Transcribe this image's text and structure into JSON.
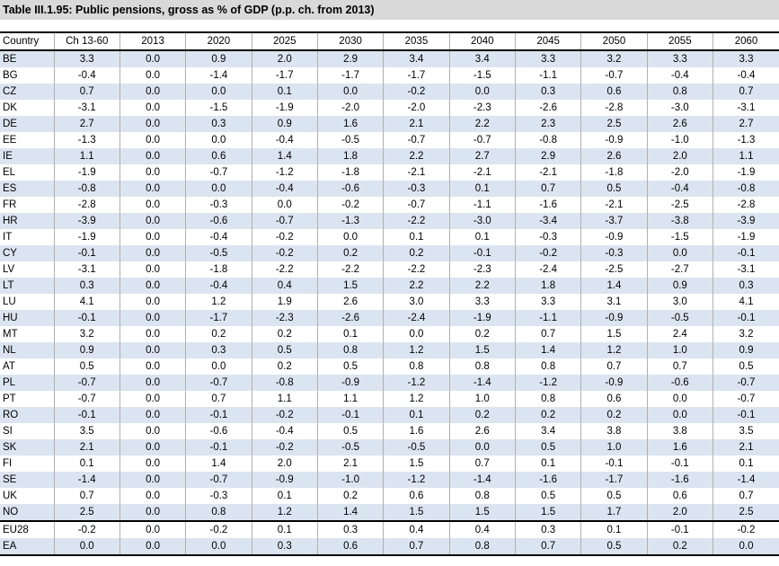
{
  "title": "Table III.1.95: Public pensions, gross as % of GDP (p.p. ch. from 2013)",
  "columns": [
    "Country",
    "Ch 13-60",
    "2013",
    "2020",
    "2025",
    "2030",
    "2035",
    "2040",
    "2045",
    "2050",
    "2055",
    "2060"
  ],
  "rows": [
    [
      "BE",
      "3.3",
      "0.0",
      "0.9",
      "2.0",
      "2.9",
      "3.4",
      "3.4",
      "3.3",
      "3.2",
      "3.3",
      "3.3"
    ],
    [
      "BG",
      "-0.4",
      "0.0",
      "-1.4",
      "-1.7",
      "-1.7",
      "-1.7",
      "-1.5",
      "-1.1",
      "-0.7",
      "-0.4",
      "-0.4"
    ],
    [
      "CZ",
      "0.7",
      "0.0",
      "0.0",
      "0.1",
      "0.0",
      "-0.2",
      "0.0",
      "0.3",
      "0.6",
      "0.8",
      "0.7"
    ],
    [
      "DK",
      "-3.1",
      "0.0",
      "-1.5",
      "-1.9",
      "-2.0",
      "-2.0",
      "-2.3",
      "-2.6",
      "-2.8",
      "-3.0",
      "-3.1"
    ],
    [
      "DE",
      "2.7",
      "0.0",
      "0.3",
      "0.9",
      "1.6",
      "2.1",
      "2.2",
      "2.3",
      "2.5",
      "2.6",
      "2.7"
    ],
    [
      "EE",
      "-1.3",
      "0.0",
      "0.0",
      "-0.4",
      "-0.5",
      "-0.7",
      "-0.7",
      "-0.8",
      "-0.9",
      "-1.0",
      "-1.3"
    ],
    [
      "IE",
      "1.1",
      "0.0",
      "0.6",
      "1.4",
      "1.8",
      "2.2",
      "2.7",
      "2.9",
      "2.6",
      "2.0",
      "1.1"
    ],
    [
      "EL",
      "-1.9",
      "0.0",
      "-0.7",
      "-1.2",
      "-1.8",
      "-2.1",
      "-2.1",
      "-2.1",
      "-1.8",
      "-2.0",
      "-1.9"
    ],
    [
      "ES",
      "-0.8",
      "0.0",
      "0.0",
      "-0.4",
      "-0.6",
      "-0.3",
      "0.1",
      "0.7",
      "0.5",
      "-0.4",
      "-0.8"
    ],
    [
      "FR",
      "-2.8",
      "0.0",
      "-0.3",
      "0.0",
      "-0.2",
      "-0.7",
      "-1.1",
      "-1.6",
      "-2.1",
      "-2.5",
      "-2.8"
    ],
    [
      "HR",
      "-3.9",
      "0.0",
      "-0.6",
      "-0.7",
      "-1.3",
      "-2.2",
      "-3.0",
      "-3.4",
      "-3.7",
      "-3.8",
      "-3.9"
    ],
    [
      "IT",
      "-1.9",
      "0.0",
      "-0.4",
      "-0.2",
      "0.0",
      "0.1",
      "0.1",
      "-0.3",
      "-0.9",
      "-1.5",
      "-1.9"
    ],
    [
      "CY",
      "-0.1",
      "0.0",
      "-0.5",
      "-0.2",
      "0.2",
      "0.2",
      "-0.1",
      "-0.2",
      "-0.3",
      "0.0",
      "-0.1"
    ],
    [
      "LV",
      "-3.1",
      "0.0",
      "-1.8",
      "-2.2",
      "-2.2",
      "-2.2",
      "-2.3",
      "-2.4",
      "-2.5",
      "-2.7",
      "-3.1"
    ],
    [
      "LT",
      "0.3",
      "0.0",
      "-0.4",
      "0.4",
      "1.5",
      "2.2",
      "2.2",
      "1.8",
      "1.4",
      "0.9",
      "0.3"
    ],
    [
      "LU",
      "4.1",
      "0.0",
      "1.2",
      "1.9",
      "2.6",
      "3.0",
      "3.3",
      "3.3",
      "3.1",
      "3.0",
      "4.1"
    ],
    [
      "HU",
      "-0.1",
      "0.0",
      "-1.7",
      "-2.3",
      "-2.6",
      "-2.4",
      "-1.9",
      "-1.1",
      "-0.9",
      "-0.5",
      "-0.1"
    ],
    [
      "MT",
      "3.2",
      "0.0",
      "0.2",
      "0.2",
      "0.1",
      "0.0",
      "0.2",
      "0.7",
      "1.5",
      "2.4",
      "3.2"
    ],
    [
      "NL",
      "0.9",
      "0.0",
      "0.3",
      "0.5",
      "0.8",
      "1.2",
      "1.5",
      "1.4",
      "1.2",
      "1.0",
      "0.9"
    ],
    [
      "AT",
      "0.5",
      "0.0",
      "0.0",
      "0.2",
      "0.5",
      "0.8",
      "0.8",
      "0.8",
      "0.7",
      "0.7",
      "0.5"
    ],
    [
      "PL",
      "-0.7",
      "0.0",
      "-0.7",
      "-0.8",
      "-0.9",
      "-1.2",
      "-1.4",
      "-1.2",
      "-0.9",
      "-0.6",
      "-0.7"
    ],
    [
      "PT",
      "-0.7",
      "0.0",
      "0.7",
      "1.1",
      "1.1",
      "1.2",
      "1.0",
      "0.8",
      "0.6",
      "0.0",
      "-0.7"
    ],
    [
      "RO",
      "-0.1",
      "0.0",
      "-0.1",
      "-0.2",
      "-0.1",
      "0.1",
      "0.2",
      "0.2",
      "0.2",
      "0.0",
      "-0.1"
    ],
    [
      "SI",
      "3.5",
      "0.0",
      "-0.6",
      "-0.4",
      "0.5",
      "1.6",
      "2.6",
      "3.4",
      "3.8",
      "3.8",
      "3.5"
    ],
    [
      "SK",
      "2.1",
      "0.0",
      "-0.1",
      "-0.2",
      "-0.5",
      "-0.5",
      "0.0",
      "0.5",
      "1.0",
      "1.6",
      "2.1"
    ],
    [
      "FI",
      "0.1",
      "0.0",
      "1.4",
      "2.0",
      "2.1",
      "1.5",
      "0.7",
      "0.1",
      "-0.1",
      "-0.1",
      "0.1"
    ],
    [
      "SE",
      "-1.4",
      "0.0",
      "-0.7",
      "-0.9",
      "-1.0",
      "-1.2",
      "-1.4",
      "-1.6",
      "-1.7",
      "-1.6",
      "-1.4"
    ],
    [
      "UK",
      "0.7",
      "0.0",
      "-0.3",
      "0.1",
      "0.2",
      "0.6",
      "0.8",
      "0.5",
      "0.5",
      "0.6",
      "0.7"
    ],
    [
      "NO",
      "2.5",
      "0.0",
      "0.8",
      "1.2",
      "1.4",
      "1.5",
      "1.5",
      "1.5",
      "1.7",
      "2.0",
      "2.5"
    ],
    [
      "EU28",
      "-0.2",
      "0.0",
      "-0.2",
      "0.1",
      "0.3",
      "0.4",
      "0.4",
      "0.3",
      "0.1",
      "-0.1",
      "-0.2"
    ],
    [
      "EA",
      "0.0",
      "0.0",
      "0.0",
      "0.3",
      "0.6",
      "0.7",
      "0.8",
      "0.7",
      "0.5",
      "0.2",
      "0.0"
    ]
  ],
  "chart_data": {
    "type": "table",
    "title": "Table III.1.95: Public pensions, gross as % of GDP (p.p. ch. from 2013)",
    "columns": [
      "Country",
      "Ch 13-60",
      "2013",
      "2020",
      "2025",
      "2030",
      "2035",
      "2040",
      "2045",
      "2050",
      "2055",
      "2060"
    ]
  }
}
